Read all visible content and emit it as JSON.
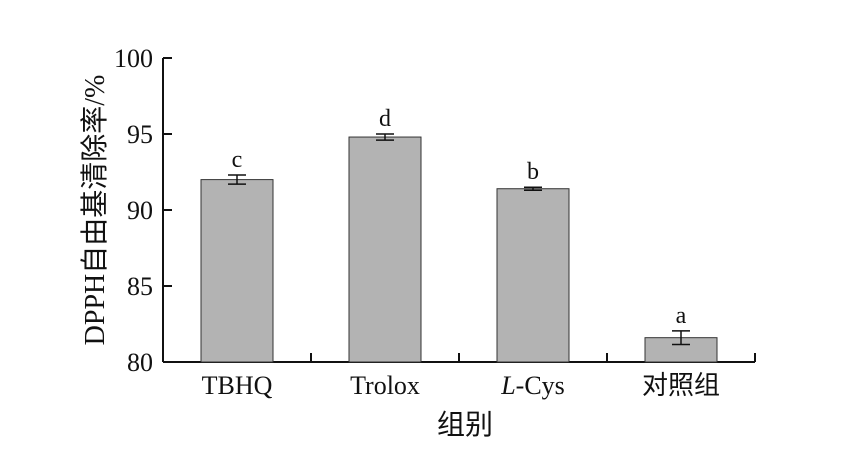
{
  "chart_data": {
    "type": "bar",
    "categories": [
      "TBHQ",
      "Trolox",
      "L-Cys",
      "对照组"
    ],
    "category_display": [
      {
        "italic": "",
        "rest": "TBHQ"
      },
      {
        "italic": "",
        "rest": "Trolox"
      },
      {
        "italic": "L",
        "rest": "-Cys"
      },
      {
        "italic": "",
        "rest": "对照组"
      }
    ],
    "values": [
      92.0,
      94.8,
      91.4,
      81.6
    ],
    "errors": [
      0.3,
      0.2,
      0.1,
      0.45
    ],
    "significance_letters": [
      "c",
      "d",
      "b",
      "a"
    ],
    "bar_color": "#b3b3b3",
    "bar_edge_color": "#333333",
    "xlabel": "组别",
    "ylabel": "DPPH自由基清除率/%",
    "ylim": [
      80,
      100
    ],
    "yticks": [
      80,
      85,
      90,
      95,
      100
    ],
    "grid": false,
    "legend": "none"
  }
}
